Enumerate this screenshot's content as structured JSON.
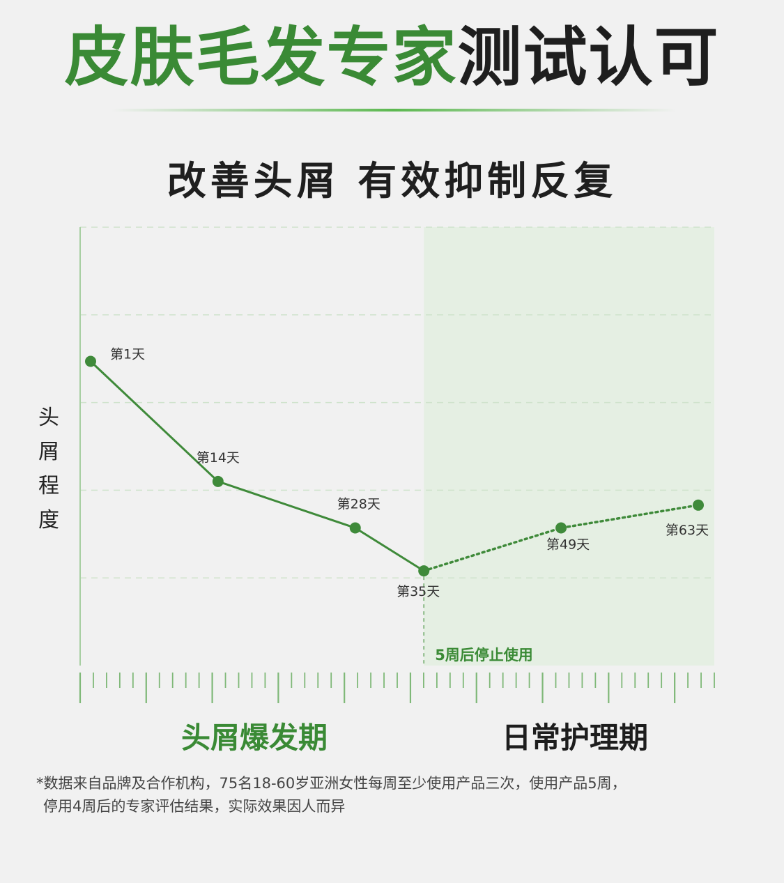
{
  "title": {
    "green_part": "皮肤毛发专家",
    "dark_part": "测试认可"
  },
  "subtitle": "改善头屑 有效抑制反复",
  "chart_data": {
    "type": "line",
    "title": "改善头屑 有效抑制反复",
    "ylabel": "头屑程度",
    "xlabel": "",
    "x_unit": "天",
    "ylim": [
      0,
      5
    ],
    "grid": true,
    "series": [
      {
        "style": "solid",
        "points": [
          {
            "x": 1,
            "y": 3.47,
            "label": "第1天"
          },
          {
            "x": 14,
            "y": 2.1,
            "label": "第14天"
          },
          {
            "x": 28,
            "y": 1.57,
            "label": "第28天"
          },
          {
            "x": 35,
            "y": 1.08,
            "label": "第35天"
          }
        ]
      },
      {
        "style": "dotted",
        "points": [
          {
            "x": 35,
            "y": 1.08,
            "label": "第35天"
          },
          {
            "x": 49,
            "y": 1.57,
            "label": "第49天"
          },
          {
            "x": 63,
            "y": 1.83,
            "label": "第63天"
          }
        ]
      }
    ],
    "annotation": {
      "x": 35,
      "text": "5周后停止使用"
    },
    "phases": [
      "头屑爆发期",
      "日常护理期"
    ]
  },
  "colors": {
    "accent": "#3a8a35",
    "line": "#3f8a3a",
    "shade": "#e3eee0",
    "grid": "#cfe3cc"
  },
  "footnote": [
    "*数据来自品牌及合作机构，75名18-60岁亚洲女性每周至少使用产品三次，使用产品5周，",
    "停用4周后的专家评估结果，实际效果因人而异"
  ]
}
